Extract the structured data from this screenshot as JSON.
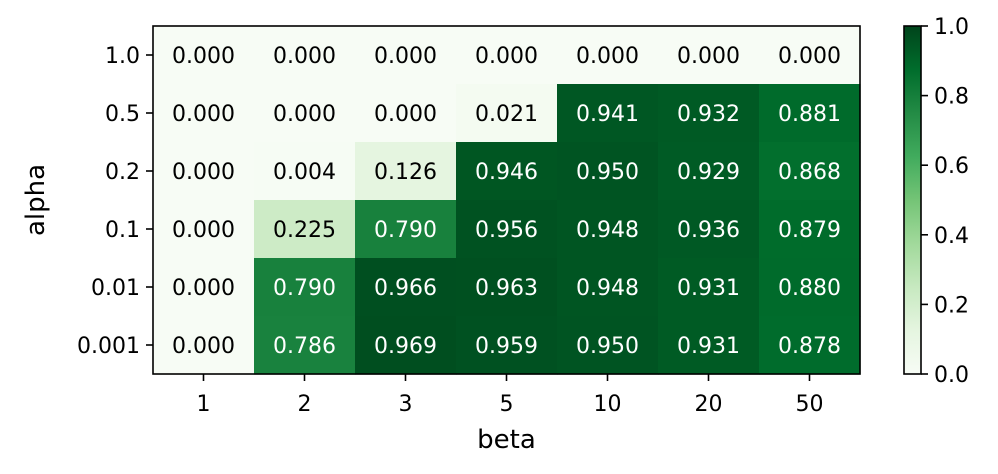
{
  "chart_data": {
    "type": "heatmap",
    "title": "",
    "xlabel": "beta",
    "ylabel": "alpha",
    "x_categories": [
      "1",
      "2",
      "3",
      "5",
      "10",
      "20",
      "50"
    ],
    "y_categories": [
      "1.0",
      "0.5",
      "0.2",
      "0.1",
      "0.01",
      "0.001"
    ],
    "values": [
      [
        0.0,
        0.0,
        0.0,
        0.0,
        0.0,
        0.0,
        0.0
      ],
      [
        0.0,
        0.0,
        0.0,
        0.021,
        0.941,
        0.932,
        0.881
      ],
      [
        0.0,
        0.004,
        0.126,
        0.946,
        0.95,
        0.929,
        0.868
      ],
      [
        0.0,
        0.225,
        0.79,
        0.956,
        0.948,
        0.936,
        0.879
      ],
      [
        0.0,
        0.79,
        0.966,
        0.963,
        0.948,
        0.931,
        0.88
      ],
      [
        0.0,
        0.786,
        0.969,
        0.959,
        0.95,
        0.931,
        0.878
      ]
    ],
    "value_labels": [
      [
        "0.000",
        "0.000",
        "0.000",
        "0.000",
        "0.000",
        "0.000",
        "0.000"
      ],
      [
        "0.000",
        "0.000",
        "0.000",
        "0.021",
        "0.941",
        "0.932",
        "0.881"
      ],
      [
        "0.000",
        "0.004",
        "0.126",
        "0.946",
        "0.950",
        "0.929",
        "0.868"
      ],
      [
        "0.000",
        "0.225",
        "0.790",
        "0.956",
        "0.948",
        "0.936",
        "0.879"
      ],
      [
        "0.000",
        "0.790",
        "0.966",
        "0.963",
        "0.948",
        "0.931",
        "0.880"
      ],
      [
        "0.000",
        "0.786",
        "0.969",
        "0.959",
        "0.950",
        "0.931",
        "0.878"
      ]
    ],
    "colormap": "Greens",
    "colorbar": {
      "range": [
        0.0,
        1.0
      ],
      "ticks": [
        "0.0",
        "0.2",
        "0.4",
        "0.6",
        "0.8",
        "1.0"
      ],
      "placement": "right"
    },
    "grid": false
  }
}
